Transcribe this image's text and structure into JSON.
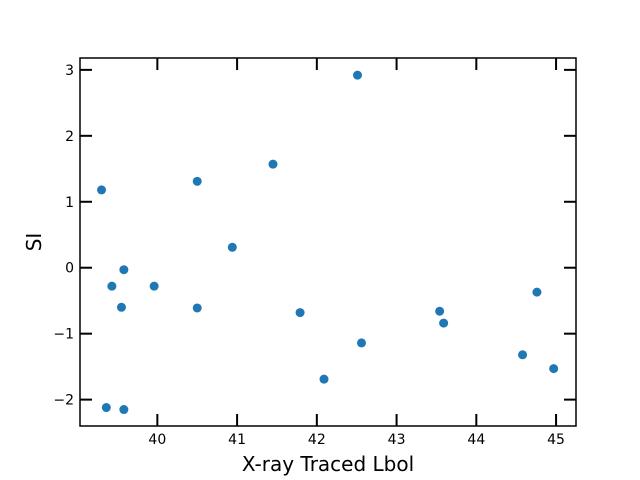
{
  "chart_data": {
    "type": "scatter",
    "title": "",
    "xlabel": "X-ray Traced Lbol",
    "ylabel": "SI",
    "xlim": [
      39.03,
      45.25
    ],
    "ylim": [
      -2.4,
      3.18
    ],
    "xticks": [
      40,
      41,
      42,
      43,
      44,
      45
    ],
    "yticks": [
      -2,
      -1,
      0,
      1,
      2,
      3
    ],
    "grid": false,
    "colors": {
      "marker": "#1f77b4",
      "axes": "#000000"
    },
    "series": [
      {
        "x": [
          39.3,
          39.43,
          39.55,
          39.58,
          39.96,
          40.5,
          40.5,
          40.94,
          41.45,
          41.79,
          42.09,
          42.51,
          42.56,
          43.54,
          43.59,
          44.58,
          44.76,
          44.97,
          39.36,
          39.58
        ],
        "y": [
          1.18,
          -0.28,
          -0.6,
          -0.03,
          -0.28,
          1.31,
          -0.61,
          0.31,
          1.57,
          -0.68,
          -1.69,
          2.92,
          -1.14,
          -0.66,
          -0.84,
          -1.32,
          -0.37,
          -1.53,
          -2.12,
          -2.15
        ]
      }
    ]
  }
}
